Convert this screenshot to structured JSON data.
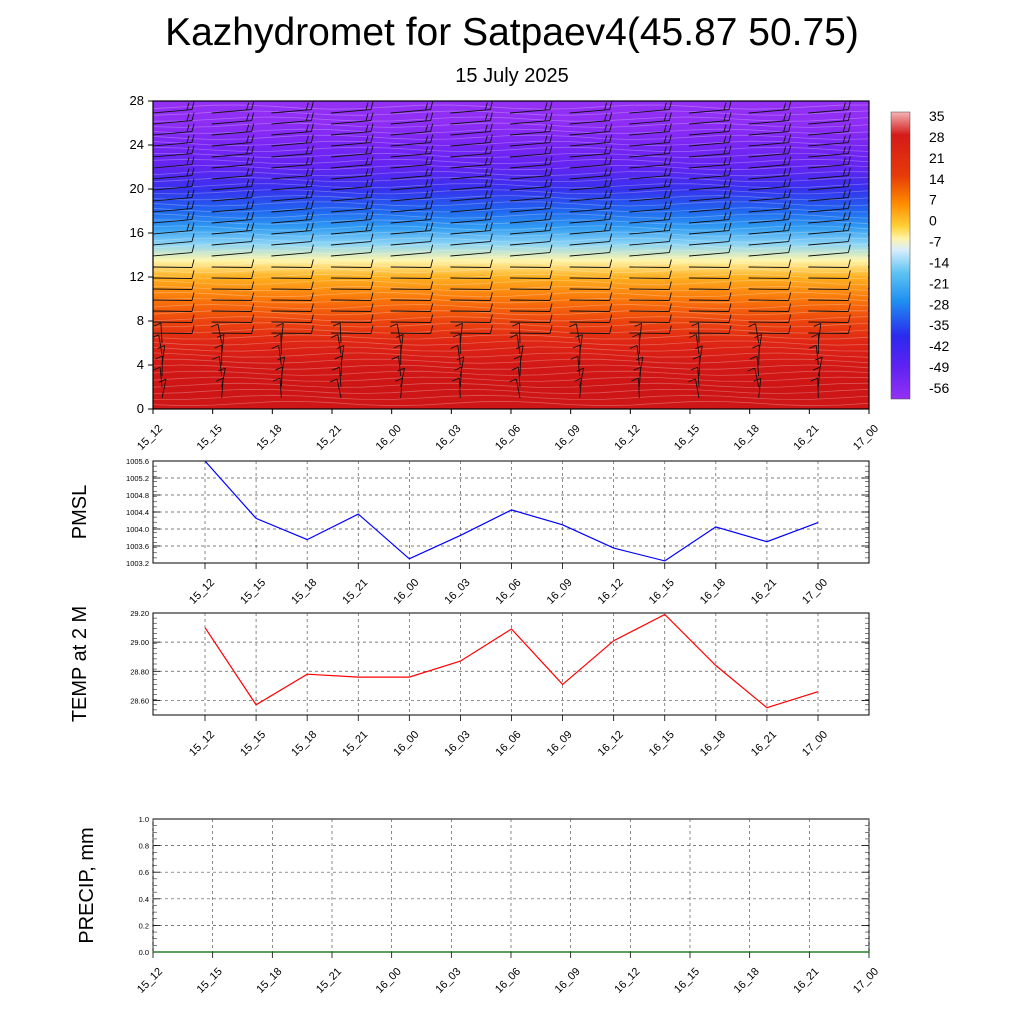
{
  "header": {
    "title": "Kazhydromet for Satpaev4(45.87 50.75)",
    "subtitle": "15 July 2025"
  },
  "chart_data": [
    {
      "type": "heatmap",
      "description_role": "time-height cross section of temperature with wind barbs",
      "x_tick_labels": [
        "15_12",
        "15_15",
        "15_18",
        "15_21",
        "16_00",
        "16_03",
        "16_06",
        "16_09",
        "16_12",
        "16_15",
        "16_18",
        "16_21",
        "17_00"
      ],
      "y_tick_labels": [
        "0",
        "4",
        "8",
        "12",
        "16",
        "20",
        "24",
        "28"
      ],
      "ylim": [
        0,
        28
      ],
      "colorbar_labels": [
        "35",
        "28",
        "21",
        "14",
        "7",
        "0",
        "-7",
        "-14",
        "-21",
        "-28",
        "-35",
        "-42",
        "-49",
        "-56"
      ],
      "colorbar_range": [
        -63,
        38
      ],
      "temperature_profile": [
        {
          "level": 0,
          "value": 29
        },
        {
          "level": 2,
          "value": 30
        },
        {
          "level": 4,
          "value": 27
        },
        {
          "level": 6,
          "value": 22
        },
        {
          "level": 8,
          "value": 17
        },
        {
          "level": 10,
          "value": 10
        },
        {
          "level": 12,
          "value": 2
        },
        {
          "level": 13.5,
          "value": -10
        },
        {
          "level": 15,
          "value": -18
        },
        {
          "level": 16.5,
          "value": -27
        },
        {
          "level": 18,
          "value": -36
        },
        {
          "level": 20,
          "value": -46
        },
        {
          "level": 22,
          "value": -54
        },
        {
          "level": 24,
          "value": -58
        },
        {
          "level": 26,
          "value": -62
        },
        {
          "level": 28,
          "value": -63
        }
      ],
      "barb_levels": [
        1,
        2,
        3,
        4,
        5,
        6,
        7,
        8,
        9,
        10,
        11,
        12,
        13,
        14,
        15,
        16,
        17,
        18,
        19,
        20,
        21,
        22,
        23,
        24,
        25,
        26,
        27
      ]
    },
    {
      "type": "line",
      "ylabel": "PMSL",
      "x_tick_labels": [
        "15_12",
        "15_15",
        "15_18",
        "15_21",
        "16_00",
        "16_03",
        "16_06",
        "16_09",
        "16_12",
        "16_15",
        "16_18",
        "16_21",
        "17_00"
      ],
      "y_tick_labels": [
        "1003.2",
        "1003.6",
        "1004.0",
        "1004.4",
        "1004.8",
        "1005.2",
        "1005.6"
      ],
      "ylim": [
        1003.2,
        1005.6
      ],
      "grid": true,
      "series": [
        {
          "color": "#0000ff",
          "values": [
            1005.6,
            1004.25,
            1003.75,
            1004.35,
            1003.3,
            1003.85,
            1004.45,
            1004.1,
            1003.55,
            1003.25,
            1004.05,
            1003.7,
            1004.15
          ]
        }
      ]
    },
    {
      "type": "line",
      "ylabel": "TEMP at 2 M",
      "x_tick_labels": [
        "15_12",
        "15_15",
        "15_18",
        "15_21",
        "16_00",
        "16_03",
        "16_06",
        "16_09",
        "16_12",
        "16_15",
        "16_18",
        "16_21",
        "17_00"
      ],
      "y_tick_labels": [
        "28.60",
        "28.80",
        "29.00",
        "29.20"
      ],
      "ylim": [
        28.5,
        29.2
      ],
      "grid": true,
      "series": [
        {
          "color": "#ff0000",
          "values": [
            29.1,
            28.57,
            28.78,
            28.76,
            28.76,
            28.87,
            29.09,
            28.71,
            29.01,
            29.19,
            28.84,
            28.55,
            28.66
          ]
        }
      ]
    },
    {
      "type": "line",
      "ylabel": "PRECIP, mm",
      "x_tick_labels": [
        "15_12",
        "15_15",
        "15_18",
        "15_21",
        "16_00",
        "16_03",
        "16_06",
        "16_09",
        "16_12",
        "16_15",
        "16_18",
        "16_21",
        "17_00"
      ],
      "y_tick_labels": [
        "0.0",
        "0.2",
        "0.4",
        "0.6",
        "0.8",
        "1.0"
      ],
      "ylim": [
        0,
        1
      ],
      "grid": true,
      "series": [
        {
          "color": "#006400",
          "values": [
            0,
            0,
            0,
            0,
            0,
            0,
            0,
            0,
            0,
            0,
            0,
            0,
            0
          ]
        }
      ]
    }
  ],
  "colors": {
    "pmsl_line": "#0000ff",
    "temp_line": "#ff0000",
    "precip_line": "#006400",
    "grid": "#555555"
  }
}
